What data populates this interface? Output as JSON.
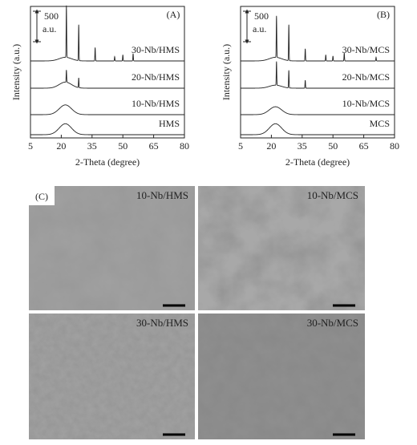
{
  "panels": [
    {
      "label": "(A)",
      "xlabel": "2-Theta (degree)",
      "ylabel": "Intensity (a.u.)",
      "xlim": [
        5,
        80
      ],
      "xticks": [
        5,
        20,
        35,
        50,
        65,
        80
      ],
      "scale_bar": {
        "value": 500,
        "unit": "a.u."
      },
      "samples": [
        {
          "name": "30-Nb/HMS",
          "hump": {
            "center": 22,
            "height": 60,
            "width": 3
          },
          "peaks": [
            {
              "x": 22.5,
              "height": 850
            },
            {
              "x": 28.5,
              "height": 590
            },
            {
              "x": 36.5,
              "height": 220
            },
            {
              "x": 46,
              "height": 70
            },
            {
              "x": 50,
              "height": 100
            },
            {
              "x": 55,
              "height": 120
            }
          ]
        },
        {
          "name": "20-Nb/HMS",
          "hump": {
            "center": 22,
            "height": 100,
            "width": 3
          },
          "peaks": [
            {
              "x": 22.5,
              "height": 200
            },
            {
              "x": 28.5,
              "height": 160
            }
          ]
        },
        {
          "name": "10-Nb/HMS",
          "hump": {
            "center": 22,
            "height": 160,
            "width": 3
          },
          "peaks": []
        },
        {
          "name": "HMS",
          "hump": {
            "center": 22,
            "height": 180,
            "width": 3
          },
          "peaks": []
        }
      ]
    },
    {
      "label": "(B)",
      "xlabel": "2-Theta (degree)",
      "ylabel": "Intensity (a.u.)",
      "xlim": [
        5,
        80
      ],
      "xticks": [
        5,
        20,
        35,
        50,
        65,
        80
      ],
      "scale_bar": {
        "value": 500,
        "unit": "a.u."
      },
      "samples": [
        {
          "name": "30-Nb/MCS",
          "hump": {
            "center": 22,
            "height": 60,
            "width": 3
          },
          "peaks": [
            {
              "x": 22.5,
              "height": 680
            },
            {
              "x": 28.5,
              "height": 590
            },
            {
              "x": 36.5,
              "height": 200
            },
            {
              "x": 46.5,
              "height": 100
            },
            {
              "x": 50,
              "height": 80
            },
            {
              "x": 55.5,
              "height": 130
            },
            {
              "x": 71,
              "height": 60
            }
          ]
        },
        {
          "name": "20-Nb/MCS",
          "hump": {
            "center": 22,
            "height": 50,
            "width": 3
          },
          "peaks": [
            {
              "x": 22.5,
              "height": 390
            },
            {
              "x": 28.5,
              "height": 290
            },
            {
              "x": 36.5,
              "height": 130
            }
          ]
        },
        {
          "name": "10-Nb/MCS",
          "hump": {
            "center": 22,
            "height": 130,
            "width": 3
          },
          "peaks": []
        },
        {
          "name": "MCS",
          "hump": {
            "center": 22,
            "height": 180,
            "width": 3
          },
          "peaks": []
        }
      ]
    }
  ],
  "tem": {
    "label": "(C)",
    "images": [
      {
        "name": "10-Nb/HMS"
      },
      {
        "name": "10-Nb/MCS"
      },
      {
        "name": "30-Nb/HMS"
      },
      {
        "name": "30-Nb/MCS"
      }
    ]
  }
}
